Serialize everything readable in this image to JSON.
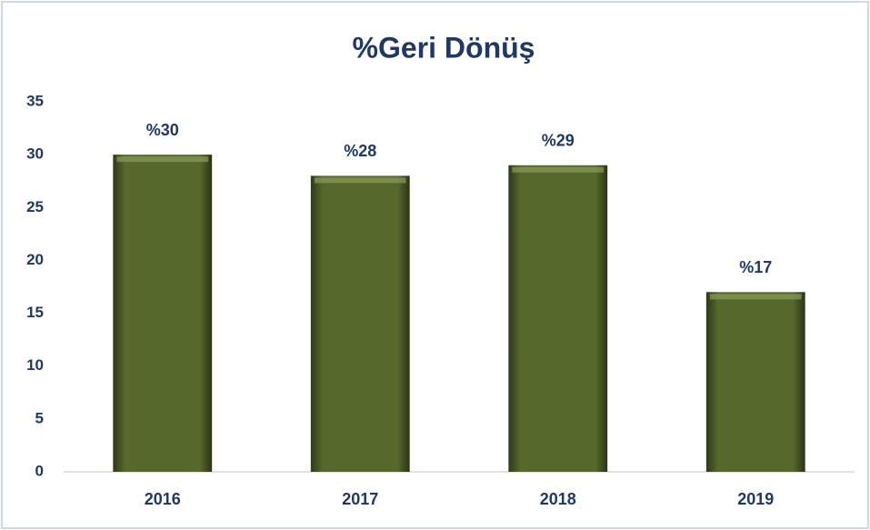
{
  "chart_data": {
    "type": "bar",
    "title": "%Geri Dönüş",
    "categories": [
      "2016",
      "2017",
      "2018",
      "2019"
    ],
    "values": [
      30,
      28,
      29,
      17
    ],
    "value_labels": [
      "%30",
      "%28",
      "%29",
      "%17"
    ],
    "color": "#56682c",
    "ylim": [
      0,
      35
    ],
    "yticks": [
      0,
      5,
      10,
      15,
      20,
      25,
      30,
      35
    ],
    "grid": false
  }
}
